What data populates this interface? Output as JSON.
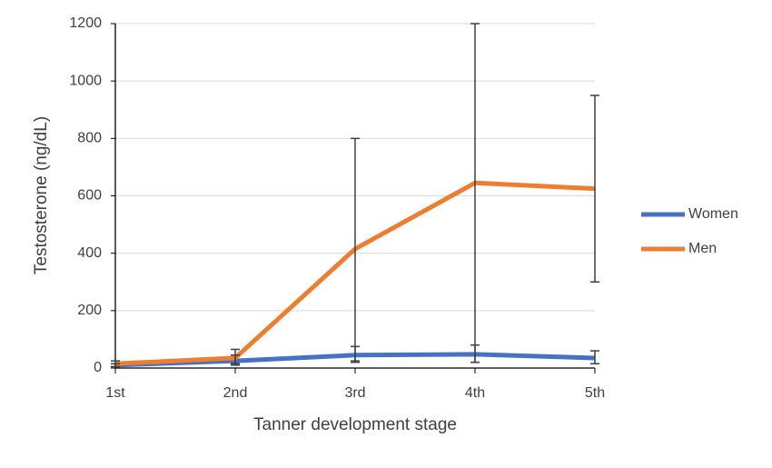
{
  "chart_data": {
    "type": "line",
    "x_label": "Tanner development stage",
    "y_label": "Testosterone (ng/dL)",
    "categories": [
      "1st",
      "2nd",
      "3rd",
      "4th",
      "5th"
    ],
    "series": [
      {
        "name": "Women",
        "color": "#4472c4",
        "values": [
          10,
          25,
          45,
          48,
          35
        ],
        "lower": [
          5,
          10,
          25,
          20,
          15
        ],
        "upper": [
          15,
          45,
          75,
          80,
          60
        ]
      },
      {
        "name": "Men",
        "color": "#ed7d31",
        "values": [
          15,
          35,
          415,
          645,
          625
        ],
        "lower": [
          5,
          15,
          20,
          20,
          300
        ],
        "upper": [
          25,
          65,
          800,
          1200,
          950
        ]
      }
    ],
    "ylim": [
      0,
      1200
    ],
    "yticks": [
      0,
      200,
      400,
      600,
      800,
      1000,
      1200
    ],
    "grid": true,
    "legend": "right"
  }
}
